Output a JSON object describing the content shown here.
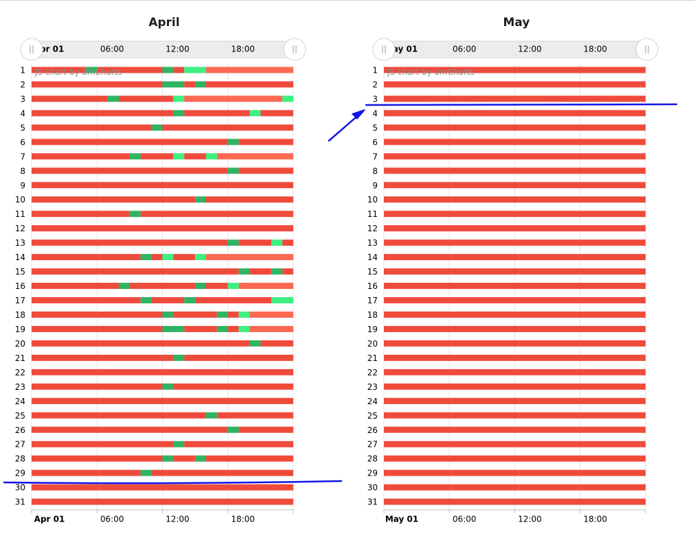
{
  "chart_data": [
    {
      "type": "gantt",
      "title": "April",
      "credit": "JS chart by amCharts",
      "x_ticks": [
        "Apr 01",
        "06:00",
        "12:00",
        "18:00"
      ],
      "x_range_hours": [
        0,
        24
      ],
      "rows": [
        "1",
        "2",
        "3",
        "4",
        "5",
        "6",
        "7",
        "8",
        "9",
        "10",
        "11",
        "12",
        "13",
        "14",
        "15",
        "16",
        "17",
        "18",
        "19",
        "20",
        "21",
        "22",
        "23",
        "24",
        "25",
        "26",
        "27",
        "28",
        "29",
        "30",
        "31"
      ],
      "segments": [
        [
          [
            0,
            5,
            "r"
          ],
          [
            5,
            6,
            "g"
          ],
          [
            6,
            12,
            "r"
          ],
          [
            12,
            13,
            "g"
          ],
          [
            13,
            14,
            "r"
          ],
          [
            14,
            16,
            "l"
          ],
          [
            16,
            24,
            "s"
          ]
        ],
        [
          [
            0,
            12,
            "r"
          ],
          [
            12,
            14,
            "g"
          ],
          [
            14,
            15,
            "r"
          ],
          [
            15,
            16,
            "g"
          ],
          [
            16,
            24,
            "r"
          ]
        ],
        [
          [
            0,
            7,
            "r"
          ],
          [
            7,
            8,
            "g"
          ],
          [
            8,
            13,
            "r"
          ],
          [
            13,
            14,
            "l"
          ],
          [
            14,
            23,
            "s"
          ],
          [
            23,
            24,
            "l"
          ]
        ],
        [
          [
            0,
            13,
            "r"
          ],
          [
            13,
            14,
            "g"
          ],
          [
            14,
            20,
            "r"
          ],
          [
            20,
            21,
            "l"
          ],
          [
            21,
            24,
            "r"
          ]
        ],
        [
          [
            0,
            11,
            "r"
          ],
          [
            11,
            12,
            "g"
          ],
          [
            12,
            24,
            "r"
          ]
        ],
        [
          [
            0,
            18,
            "r"
          ],
          [
            18,
            19,
            "g"
          ],
          [
            19,
            24,
            "r"
          ]
        ],
        [
          [
            0,
            9,
            "r"
          ],
          [
            9,
            10,
            "g"
          ],
          [
            10,
            13,
            "r"
          ],
          [
            13,
            14,
            "l"
          ],
          [
            14,
            16,
            "r"
          ],
          [
            16,
            17,
            "l"
          ],
          [
            17,
            24,
            "s"
          ]
        ],
        [
          [
            0,
            18,
            "r"
          ],
          [
            18,
            19,
            "g"
          ],
          [
            19,
            24,
            "r"
          ]
        ],
        [
          [
            0,
            24,
            "r"
          ]
        ],
        [
          [
            0,
            15,
            "r"
          ],
          [
            15,
            16,
            "g"
          ],
          [
            16,
            24,
            "r"
          ]
        ],
        [
          [
            0,
            9,
            "r"
          ],
          [
            9,
            10,
            "g"
          ],
          [
            10,
            24,
            "r"
          ]
        ],
        [
          [
            0,
            24,
            "r"
          ]
        ],
        [
          [
            0,
            18,
            "r"
          ],
          [
            18,
            19,
            "g"
          ],
          [
            19,
            22,
            "r"
          ],
          [
            22,
            23,
            "l"
          ],
          [
            23,
            24,
            "r"
          ]
        ],
        [
          [
            0,
            10,
            "r"
          ],
          [
            10,
            11,
            "g"
          ],
          [
            11,
            12,
            "r"
          ],
          [
            12,
            13,
            "l"
          ],
          [
            13,
            15,
            "r"
          ],
          [
            15,
            16,
            "l"
          ],
          [
            16,
            24,
            "s"
          ]
        ],
        [
          [
            0,
            19,
            "r"
          ],
          [
            19,
            20,
            "g"
          ],
          [
            20,
            22,
            "r"
          ],
          [
            22,
            23,
            "g"
          ],
          [
            23,
            24,
            "r"
          ]
        ],
        [
          [
            0,
            8,
            "r"
          ],
          [
            8,
            9,
            "g"
          ],
          [
            9,
            15,
            "r"
          ],
          [
            15,
            16,
            "g"
          ],
          [
            16,
            18,
            "r"
          ],
          [
            18,
            19,
            "l"
          ],
          [
            19,
            24,
            "s"
          ]
        ],
        [
          [
            0,
            10,
            "r"
          ],
          [
            10,
            11,
            "g"
          ],
          [
            11,
            14,
            "r"
          ],
          [
            14,
            15,
            "g"
          ],
          [
            15,
            22,
            "r"
          ],
          [
            22,
            24,
            "l"
          ]
        ],
        [
          [
            0,
            12,
            "r"
          ],
          [
            12,
            13,
            "g"
          ],
          [
            13,
            17,
            "r"
          ],
          [
            17,
            18,
            "g"
          ],
          [
            18,
            19,
            "r"
          ],
          [
            19,
            20,
            "l"
          ],
          [
            20,
            24,
            "s"
          ]
        ],
        [
          [
            0,
            12,
            "r"
          ],
          [
            12,
            14,
            "g"
          ],
          [
            14,
            17,
            "r"
          ],
          [
            17,
            18,
            "g"
          ],
          [
            18,
            19,
            "r"
          ],
          [
            19,
            20,
            "l"
          ],
          [
            20,
            24,
            "s"
          ]
        ],
        [
          [
            0,
            20,
            "r"
          ],
          [
            20,
            21,
            "g"
          ],
          [
            21,
            24,
            "r"
          ]
        ],
        [
          [
            0,
            13,
            "r"
          ],
          [
            13,
            14,
            "g"
          ],
          [
            14,
            24,
            "r"
          ]
        ],
        [
          [
            0,
            24,
            "r"
          ]
        ],
        [
          [
            0,
            12,
            "r"
          ],
          [
            12,
            13,
            "g"
          ],
          [
            13,
            24,
            "r"
          ]
        ],
        [
          [
            0,
            24,
            "r"
          ]
        ],
        [
          [
            0,
            16,
            "r"
          ],
          [
            16,
            17,
            "g"
          ],
          [
            17,
            24,
            "r"
          ]
        ],
        [
          [
            0,
            18,
            "r"
          ],
          [
            18,
            19,
            "g"
          ],
          [
            19,
            24,
            "r"
          ]
        ],
        [
          [
            0,
            13,
            "r"
          ],
          [
            13,
            14,
            "g"
          ],
          [
            14,
            24,
            "r"
          ]
        ],
        [
          [
            0,
            12,
            "r"
          ],
          [
            12,
            13,
            "g"
          ],
          [
            13,
            15,
            "r"
          ],
          [
            15,
            16,
            "g"
          ],
          [
            16,
            24,
            "r"
          ]
        ],
        [
          [
            0,
            10,
            "r"
          ],
          [
            10,
            11,
            "g"
          ],
          [
            11,
            24,
            "r"
          ]
        ],
        [
          [
            0,
            24,
            "r"
          ]
        ],
        [
          [
            0,
            24,
            "r"
          ]
        ]
      ]
    },
    {
      "type": "gantt",
      "title": "May",
      "credit": "JS chart by amCharts",
      "x_ticks": [
        "May 01",
        "06:00",
        "12:00",
        "18:00"
      ],
      "x_range_hours": [
        0,
        24
      ],
      "rows": [
        "1",
        "2",
        "3",
        "4",
        "5",
        "6",
        "7",
        "8",
        "9",
        "10",
        "11",
        "12",
        "13",
        "14",
        "15",
        "16",
        "17",
        "18",
        "19",
        "20",
        "21",
        "22",
        "23",
        "24",
        "25",
        "26",
        "27",
        "28",
        "29",
        "30",
        "31"
      ],
      "segments": "all rows [[0,24,\"r\"]]"
    }
  ],
  "colors": {
    "r": "#ef4b3c",
    "s": "#fd6952",
    "g": "#2fb463",
    "l": "#3ef083",
    "annotation": "#1212e8",
    "grid": "#e3e3e3"
  }
}
